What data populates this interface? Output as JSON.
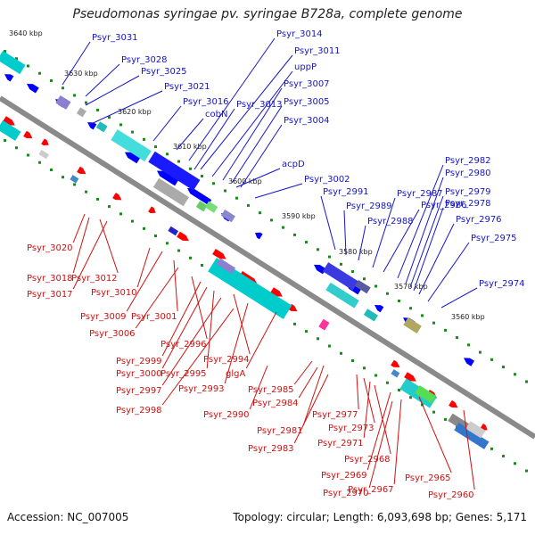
{
  "title": "Pseudomonas syringae pv. syringae B728a, complete genome",
  "footer": {
    "accession": "Accession: NC_007005",
    "topology": "Topology: circular; Length: 6,093,698 bp; Genes: 5,171"
  },
  "colors": {
    "top_labels": "#1515c8",
    "bottom_labels": "#d01010",
    "forward_genes": "#ff0000",
    "reverse_genes": "#0000ff",
    "backbone": "#8a8a8a",
    "tick_dots": "#1a8a1a"
  },
  "kbp_labels": [
    "3640 kbp",
    "3630 kbp",
    "3620 kbp",
    "3610 kbp",
    "3600 kbp",
    "3590 kbp",
    "3580 kbp",
    "3570 kbp",
    "3560 kbp"
  ],
  "top_genes": [
    "Psyr_3031",
    "Psyr_3028",
    "Psyr_3025",
    "Psyr_3021",
    "Psyr_3016",
    "cobN",
    "Psyr_3014",
    "Psyr_3011",
    "uppP",
    "Psyr_3007",
    "Psyr_3013",
    "Psyr_3005",
    "Psyr_3004",
    "acpD",
    "Psyr_3002",
    "Psyr_2991",
    "Psyr_2989",
    "Psyr_2988",
    "Psyr_2987",
    "Psyr_2986",
    "Psyr_2982",
    "Psyr_2980",
    "Psyr_2979",
    "Psyr_2978",
    "Psyr_2976",
    "Psyr_2975",
    "Psyr_2974"
  ],
  "bottom_genes": [
    "Psyr_3020",
    "Psyr_3018",
    "Psyr_3012",
    "Psyr_3017",
    "Psyr_3010",
    "Psyr_3009",
    "Psyr_3001",
    "Psyr_3006",
    "Psyr_2996",
    "Psyr_2999",
    "Psyr_3000",
    "Psyr_2995",
    "Psyr_2994",
    "Psyr_2997",
    "Psyr_2993",
    "glgA",
    "Psyr_2998",
    "Psyr_2985",
    "Psyr_2984",
    "Psyr_2990",
    "Psyr_2981",
    "Psyr_2983",
    "Psyr_2977",
    "Psyr_2973",
    "Psyr_2971",
    "Psyr_2968",
    "Psyr_2969",
    "Psyr_2965",
    "Psyr_2970",
    "Psyr_2967",
    "Psyr_2960"
  ]
}
